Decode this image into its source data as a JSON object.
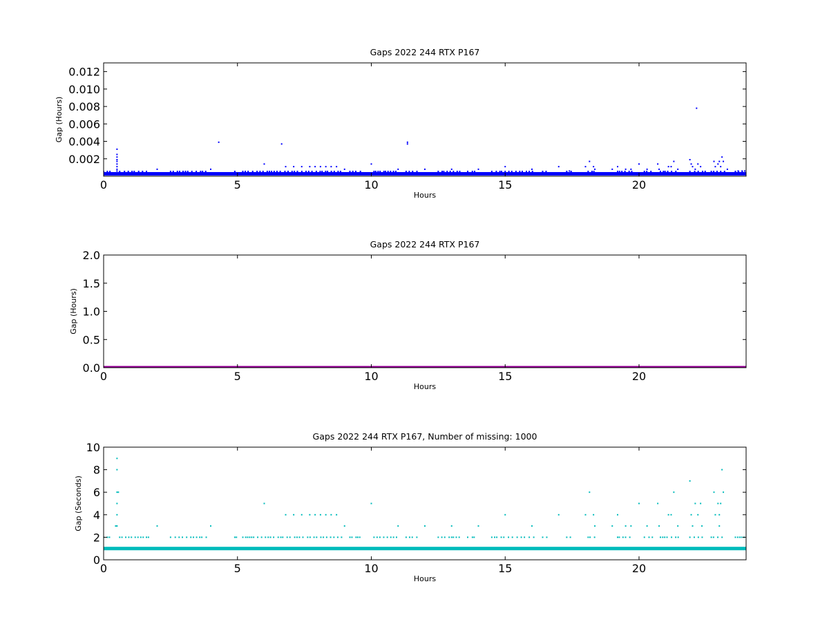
{
  "chart_data": [
    {
      "type": "scatter",
      "title": "Gaps 2022 244 RTX  P167",
      "xlabel": "Hours",
      "ylabel": "Gap (Hours)",
      "xlim": [
        0,
        24
      ],
      "ylim": [
        0,
        0.013
      ],
      "xticks": [
        0,
        5,
        10,
        15,
        20
      ],
      "xtick_labels": [
        "0",
        "5",
        "10",
        "15",
        "20"
      ],
      "yticks": [
        0.002,
        0.004,
        0.006,
        0.008,
        0.01,
        0.012
      ],
      "ytick_labels": [
        "0.002",
        "0.004",
        "0.006",
        "0.008",
        "0.010",
        "0.012"
      ],
      "grid": false,
      "color": "#0000ff",
      "baseline": {
        "y": 0.00028,
        "x_range": [
          0,
          24
        ],
        "label": ""
      },
      "series": [
        {
          "points": [
            [
              0.5,
              0.0031
            ],
            [
              0.5,
              0.0025
            ],
            [
              0.5,
              0.0022
            ],
            [
              0.5,
              0.0019
            ],
            [
              0.5,
              0.0017
            ],
            [
              0.5,
              0.0014
            ],
            [
              0.5,
              0.0011
            ],
            [
              0.5,
              0.0008
            ],
            [
              0.5,
              0.0006
            ],
            [
              4.3,
              0.0039
            ],
            [
              6.65,
              0.0037
            ],
            [
              11.35,
              0.0039
            ],
            [
              11.35,
              0.0037
            ],
            [
              22.15,
              0.0078
            ],
            [
              2.0,
              0.0008
            ],
            [
              4.0,
              0.0008
            ],
            [
              6.0,
              0.0014
            ],
            [
              6.8,
              0.0011
            ],
            [
              7.1,
              0.0011
            ],
            [
              7.4,
              0.0011
            ],
            [
              7.7,
              0.0011
            ],
            [
              7.9,
              0.0011
            ],
            [
              8.1,
              0.0011
            ],
            [
              8.3,
              0.0011
            ],
            [
              8.5,
              0.0011
            ],
            [
              8.7,
              0.0011
            ],
            [
              9.0,
              0.0008
            ],
            [
              10.0,
              0.0014
            ],
            [
              11.0,
              0.0008
            ],
            [
              12.0,
              0.0008
            ],
            [
              13.0,
              0.0008
            ],
            [
              14.0,
              0.0008
            ],
            [
              15.0,
              0.0011
            ],
            [
              16.0,
              0.0008
            ],
            [
              17.0,
              0.0011
            ],
            [
              17.4,
              0.0006
            ],
            [
              18.0,
              0.0011
            ],
            [
              18.15,
              0.0017
            ],
            [
              18.3,
              0.0011
            ],
            [
              18.35,
              0.0008
            ],
            [
              19.0,
              0.0008
            ],
            [
              19.2,
              0.0011
            ],
            [
              19.5,
              0.0008
            ],
            [
              19.7,
              0.0008
            ],
            [
              20.0,
              0.0014
            ],
            [
              20.3,
              0.0008
            ],
            [
              20.7,
              0.0014
            ],
            [
              20.75,
              0.0008
            ],
            [
              21.1,
              0.0011
            ],
            [
              21.2,
              0.0011
            ],
            [
              21.3,
              0.0017
            ],
            [
              21.45,
              0.0008
            ],
            [
              21.9,
              0.0019
            ],
            [
              21.95,
              0.0014
            ],
            [
              22.0,
              0.0011
            ],
            [
              22.1,
              0.0008
            ],
            [
              22.2,
              0.0014
            ],
            [
              22.3,
              0.0011
            ],
            [
              22.8,
              0.0017
            ],
            [
              22.85,
              0.0011
            ],
            [
              22.95,
              0.0014
            ],
            [
              23.0,
              0.0017
            ],
            [
              23.05,
              0.0011
            ],
            [
              23.1,
              0.0022
            ],
            [
              23.15,
              0.0017
            ],
            [
              23.3,
              0.0008
            ],
            [
              23.7,
              0.0006
            ],
            [
              23.85,
              0.0006
            ],
            [
              23.95,
              0.0006
            ]
          ]
        }
      ]
    },
    {
      "type": "scatter",
      "title": "Gaps 2022 244 RTX  P167",
      "xlabel": "Hours",
      "ylabel": "Gap (Hours)",
      "xlim": [
        0,
        24
      ],
      "ylim": [
        0,
        2.0
      ],
      "xticks": [
        0,
        5,
        10,
        15,
        20
      ],
      "xtick_labels": [
        "0",
        "5",
        "10",
        "15",
        "20"
      ],
      "yticks": [
        0.0,
        0.5,
        1.0,
        1.5,
        2.0
      ],
      "ytick_labels": [
        "0.0",
        "0.5",
        "1.0",
        "1.5",
        "2.0"
      ],
      "grid": false,
      "color": "#990099",
      "baseline": {
        "y": 0.0,
        "x_range": [
          0,
          24
        ],
        "label": ""
      },
      "series": [
        {
          "points": []
        }
      ]
    },
    {
      "type": "scatter",
      "title": "Gaps 2022 244 RTX  P167, Number of missing: 1000",
      "xlabel": "Hours",
      "ylabel": "Gap (Seconds)",
      "xlim": [
        0,
        24
      ],
      "ylim": [
        0,
        10
      ],
      "xticks": [
        0,
        5,
        10,
        15,
        20
      ],
      "xtick_labels": [
        "0",
        "5",
        "10",
        "15",
        "20"
      ],
      "yticks": [
        0,
        2,
        4,
        6,
        8,
        10
      ],
      "ytick_labels": [
        "0",
        "2",
        "4",
        "6",
        "8",
        "10"
      ],
      "grid": false,
      "color": "#00bbbb",
      "baseline": {
        "y": 1,
        "x_range": [
          0,
          24
        ],
        "label": ""
      },
      "series": [
        {
          "points": [
            [
              0.5,
              9
            ],
            [
              0.5,
              8
            ],
            [
              0.5,
              6
            ],
            [
              0.5,
              5
            ],
            [
              0.5,
              4
            ],
            [
              0.5,
              3
            ],
            [
              0.55,
              6
            ],
            [
              0.45,
              3
            ],
            [
              2.0,
              3
            ],
            [
              4.0,
              3
            ],
            [
              6.0,
              5
            ],
            [
              6.8,
              4
            ],
            [
              7.1,
              4
            ],
            [
              7.4,
              4
            ],
            [
              7.7,
              4
            ],
            [
              7.9,
              4
            ],
            [
              8.1,
              4
            ],
            [
              8.3,
              4
            ],
            [
              8.5,
              4
            ],
            [
              8.7,
              4
            ],
            [
              9.0,
              3
            ],
            [
              10.0,
              5
            ],
            [
              11.0,
              3
            ],
            [
              12.0,
              3
            ],
            [
              13.0,
              3
            ],
            [
              14.0,
              3
            ],
            [
              15.0,
              4
            ],
            [
              16.0,
              3
            ],
            [
              17.0,
              4
            ],
            [
              18.0,
              4
            ],
            [
              18.15,
              6
            ],
            [
              18.3,
              4
            ],
            [
              18.35,
              3
            ],
            [
              19.0,
              3
            ],
            [
              19.2,
              4
            ],
            [
              19.5,
              3
            ],
            [
              19.7,
              3
            ],
            [
              20.0,
              5
            ],
            [
              20.3,
              3
            ],
            [
              20.7,
              5
            ],
            [
              20.75,
              3
            ],
            [
              21.1,
              4
            ],
            [
              21.2,
              4
            ],
            [
              21.3,
              6
            ],
            [
              21.45,
              3
            ],
            [
              21.9,
              7
            ],
            [
              21.95,
              4
            ],
            [
              22.0,
              3
            ],
            [
              22.1,
              5
            ],
            [
              22.2,
              4
            ],
            [
              22.3,
              5
            ],
            [
              22.35,
              3
            ],
            [
              22.8,
              6
            ],
            [
              22.85,
              4
            ],
            [
              22.95,
              5
            ],
            [
              23.0,
              4
            ],
            [
              23.05,
              5
            ],
            [
              23.1,
              8
            ],
            [
              23.15,
              6
            ],
            [
              23.0,
              3
            ]
          ]
        }
      ]
    }
  ]
}
